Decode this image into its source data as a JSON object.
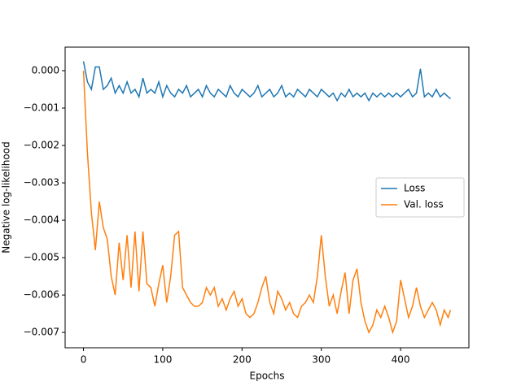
{
  "chart_data": {
    "type": "line",
    "xlabel": "Epochs",
    "ylabel": "Negative log-likelihood",
    "x": [
      0,
      5,
      10,
      15,
      20,
      25,
      30,
      35,
      40,
      45,
      50,
      55,
      60,
      65,
      70,
      75,
      80,
      85,
      90,
      95,
      100,
      105,
      110,
      115,
      120,
      125,
      130,
      135,
      140,
      145,
      150,
      155,
      160,
      165,
      170,
      175,
      180,
      185,
      190,
      195,
      200,
      205,
      210,
      215,
      220,
      225,
      230,
      235,
      240,
      245,
      250,
      255,
      260,
      265,
      270,
      275,
      280,
      285,
      290,
      295,
      300,
      305,
      310,
      315,
      320,
      325,
      330,
      335,
      340,
      345,
      350,
      355,
      360,
      365,
      370,
      375,
      380,
      385,
      390,
      395,
      400,
      405,
      410,
      415,
      420,
      425,
      430,
      435,
      440,
      445,
      450,
      455,
      460,
      463
    ],
    "series": [
      {
        "name": "Loss",
        "color": "#1f77b4",
        "values": [
          0.00025,
          -0.0003,
          -0.0005,
          0.0001,
          0.0001,
          -0.0005,
          -0.0004,
          -0.0002,
          -0.0006,
          -0.0004,
          -0.0006,
          -0.0003,
          -0.0006,
          -0.0005,
          -0.0007,
          -0.0002,
          -0.0006,
          -0.0005,
          -0.0006,
          -0.0003,
          -0.0007,
          -0.0004,
          -0.0006,
          -0.0007,
          -0.0005,
          -0.0006,
          -0.0004,
          -0.0007,
          -0.0006,
          -0.0005,
          -0.0007,
          -0.0004,
          -0.0006,
          -0.0007,
          -0.0005,
          -0.0006,
          -0.0007,
          -0.0004,
          -0.0006,
          -0.0007,
          -0.0005,
          -0.0006,
          -0.0007,
          -0.0006,
          -0.0004,
          -0.0007,
          -0.0006,
          -0.0005,
          -0.0007,
          -0.0006,
          -0.0004,
          -0.0007,
          -0.0006,
          -0.0007,
          -0.0005,
          -0.0006,
          -0.0007,
          -0.0005,
          -0.0006,
          -0.0007,
          -0.0005,
          -0.0006,
          -0.0007,
          -0.0006,
          -0.0008,
          -0.0006,
          -0.0007,
          -0.0005,
          -0.0007,
          -0.0006,
          -0.0007,
          -0.0006,
          -0.0008,
          -0.0006,
          -0.0007,
          -0.0006,
          -0.0007,
          -0.0006,
          -0.0007,
          -0.0006,
          -0.0007,
          -0.0006,
          -0.0005,
          -0.0007,
          -0.0006,
          5e-05,
          -0.0007,
          -0.0006,
          -0.0007,
          -0.0005,
          -0.0007,
          -0.0006,
          -0.0007,
          -0.00075
        ]
      },
      {
        "name": "Val. loss",
        "color": "#ff7f0e",
        "values": [
          0.0,
          -0.0022,
          -0.0038,
          -0.0048,
          -0.0035,
          -0.0042,
          -0.0045,
          -0.0055,
          -0.006,
          -0.0046,
          -0.0056,
          -0.0044,
          -0.0058,
          -0.0043,
          -0.0059,
          -0.0043,
          -0.0057,
          -0.0058,
          -0.0063,
          -0.0057,
          -0.0052,
          -0.0062,
          -0.0055,
          -0.0044,
          -0.0043,
          -0.0058,
          -0.006,
          -0.0062,
          -0.0063,
          -0.0063,
          -0.0062,
          -0.0058,
          -0.006,
          -0.0058,
          -0.0063,
          -0.0061,
          -0.0064,
          -0.0061,
          -0.0059,
          -0.0063,
          -0.0061,
          -0.0065,
          -0.0066,
          -0.0065,
          -0.0062,
          -0.0058,
          -0.0055,
          -0.0062,
          -0.0065,
          -0.0059,
          -0.0061,
          -0.0064,
          -0.0062,
          -0.0065,
          -0.0066,
          -0.0063,
          -0.0062,
          -0.006,
          -0.0062,
          -0.0055,
          -0.0044,
          -0.0055,
          -0.0063,
          -0.006,
          -0.0065,
          -0.0059,
          -0.0054,
          -0.0065,
          -0.0056,
          -0.0053,
          -0.0062,
          -0.0067,
          -0.007,
          -0.0068,
          -0.0064,
          -0.0066,
          -0.0063,
          -0.0066,
          -0.007,
          -0.0067,
          -0.0056,
          -0.0061,
          -0.0066,
          -0.0063,
          -0.0058,
          -0.0063,
          -0.0066,
          -0.0064,
          -0.0062,
          -0.0064,
          -0.0068,
          -0.0064,
          -0.0066,
          -0.0064
        ]
      }
    ],
    "xlim": [
      -23.15,
      486.15
    ],
    "xticks": [
      0,
      100,
      200,
      300,
      400
    ],
    "ylim": [
      -0.00741,
      0.00063
    ],
    "yticks": [
      {
        "value": 0,
        "label": "0.000"
      },
      {
        "value": -0.001,
        "label": "−0.001"
      },
      {
        "value": -0.002,
        "label": "−0.002"
      },
      {
        "value": -0.003,
        "label": "−0.003"
      },
      {
        "value": -0.004,
        "label": "−0.004"
      },
      {
        "value": -0.005,
        "label": "−0.005"
      },
      {
        "value": -0.006,
        "label": "−0.006"
      },
      {
        "value": -0.007,
        "label": "−0.007"
      }
    ],
    "legend": "center right"
  }
}
